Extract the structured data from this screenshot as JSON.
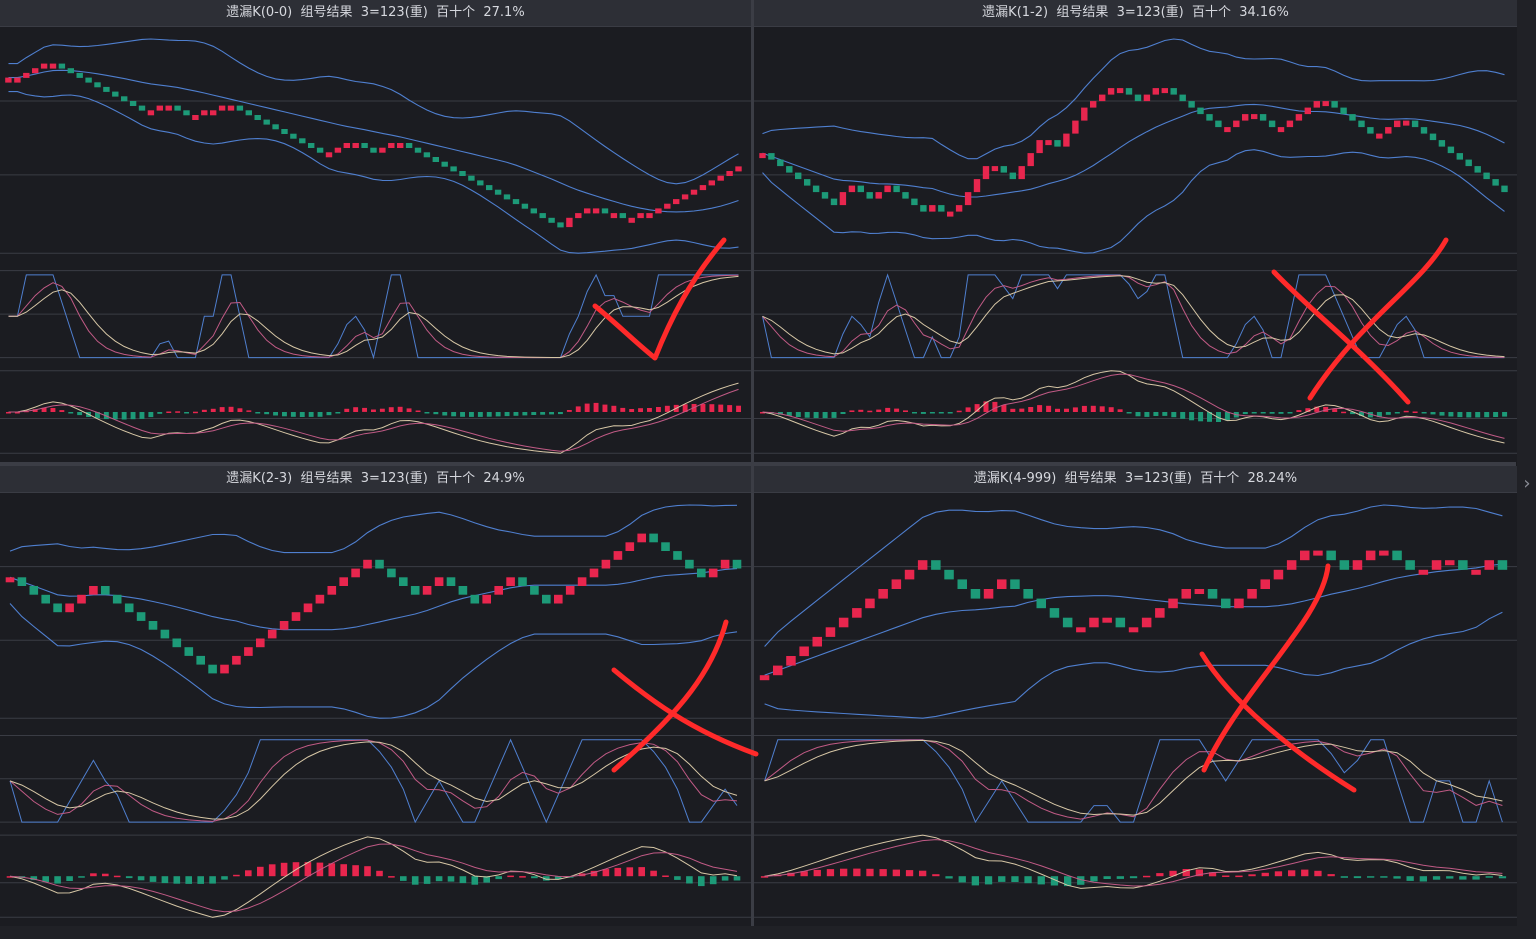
{
  "colors": {
    "up": "#e8264e",
    "down": "#1d9a78",
    "band": "#4f7fcf",
    "grid": "#3a3c44",
    "kdj_k": "#4f7fcf",
    "kdj_d": "#c05a85",
    "kdj_j": "#d7c7a6",
    "annotation": "#ff2a2a",
    "right_arrow": "chevron-right-icon"
  },
  "panels": [
    {
      "header": "遗漏K(0-0)  组号结果  3=123(重)  百十个  27.1%",
      "mark": "check"
    },
    {
      "header": "遗漏K(1-2)  组号结果  3=123(重)  百十个  34.16%",
      "mark": "cross"
    },
    {
      "header": "遗漏K(2-3)  组号结果  3=123(重)  百十个  24.9%",
      "mark": "cross"
    },
    {
      "header": "遗漏K(4-999)  组号结果  3=123(重)  百十个  28.24%",
      "mark": "cross"
    }
  ],
  "chart_data": [
    {
      "type": "candlestick",
      "title": "遗漏K(0-0)  组号结果  3=123(重)  百十个  27.1%",
      "series": [
        {
          "name": "close",
          "values": [
            40,
            40,
            42,
            44,
            46,
            46,
            44,
            42,
            40,
            38,
            36,
            34,
            32,
            30,
            28,
            26,
            26,
            28,
            28,
            26,
            24,
            24,
            26,
            26,
            28,
            28,
            26,
            24,
            22,
            20,
            18,
            16,
            14,
            12,
            10,
            8,
            8,
            10,
            12,
            12,
            10,
            8,
            10,
            12,
            12,
            10,
            8,
            6,
            4,
            2,
            0,
            -2,
            -4,
            -6,
            -8,
            -10,
            -12,
            -14,
            -16,
            -18,
            -20,
            -22,
            -24,
            -20,
            -18,
            -16,
            -16,
            -18,
            -18,
            -20,
            -20,
            -18,
            -18,
            -16,
            -14,
            -12,
            -10,
            -8,
            -6,
            -4,
            -2,
            0,
            2
          ]
        }
      ]
    },
    {
      "type": "candlestick",
      "title": "遗漏K(1-2)  组号结果  3=123(重)  百十个  34.16%",
      "series": [
        {
          "name": "close",
          "values": [
            20,
            18,
            16,
            14,
            12,
            10,
            8,
            6,
            4,
            8,
            10,
            8,
            6,
            8,
            10,
            8,
            6,
            4,
            2,
            4,
            2,
            2,
            4,
            8,
            12,
            16,
            16,
            14,
            12,
            16,
            20,
            24,
            24,
            22,
            26,
            30,
            34,
            36,
            38,
            40,
            40,
            38,
            36,
            38,
            40,
            40,
            38,
            36,
            34,
            32,
            30,
            28,
            28,
            30,
            32,
            32,
            30,
            28,
            28,
            30,
            32,
            34,
            36,
            36,
            34,
            32,
            30,
            28,
            26,
            26,
            28,
            30,
            30,
            28,
            26,
            24,
            22,
            20,
            18,
            16,
            14,
            12,
            10,
            8
          ]
        }
      ]
    },
    {
      "type": "candlestick",
      "title": "遗漏K(2-3)  组号结果  3=123(重)  百十个  24.9%",
      "series": [
        {
          "name": "close",
          "values": [
            10,
            8,
            6,
            4,
            2,
            4,
            6,
            8,
            6,
            4,
            2,
            0,
            -2,
            -4,
            -6,
            -8,
            -10,
            -12,
            -10,
            -8,
            -6,
            -4,
            -2,
            0,
            2,
            4,
            6,
            8,
            10,
            12,
            14,
            12,
            10,
            8,
            6,
            8,
            10,
            8,
            6,
            4,
            6,
            8,
            10,
            8,
            6,
            4,
            6,
            8,
            10,
            12,
            14,
            16,
            18,
            20,
            18,
            16,
            14,
            12,
            10,
            12,
            14,
            12
          ]
        }
      ]
    },
    {
      "type": "candlestick",
      "title": "遗漏K(4-999)  组号结果  3=123(重)  百十个  28.24%",
      "series": [
        {
          "name": "close",
          "values": [
            0,
            2,
            4,
            6,
            8,
            10,
            12,
            14,
            16,
            18,
            20,
            22,
            24,
            22,
            20,
            18,
            16,
            18,
            20,
            18,
            16,
            14,
            12,
            10,
            10,
            12,
            12,
            10,
            10,
            12,
            14,
            16,
            18,
            18,
            16,
            14,
            16,
            18,
            20,
            22,
            24,
            26,
            26,
            24,
            22,
            24,
            26,
            26,
            24,
            22,
            22,
            24,
            24,
            22,
            22,
            24,
            22
          ]
        }
      ]
    }
  ]
}
